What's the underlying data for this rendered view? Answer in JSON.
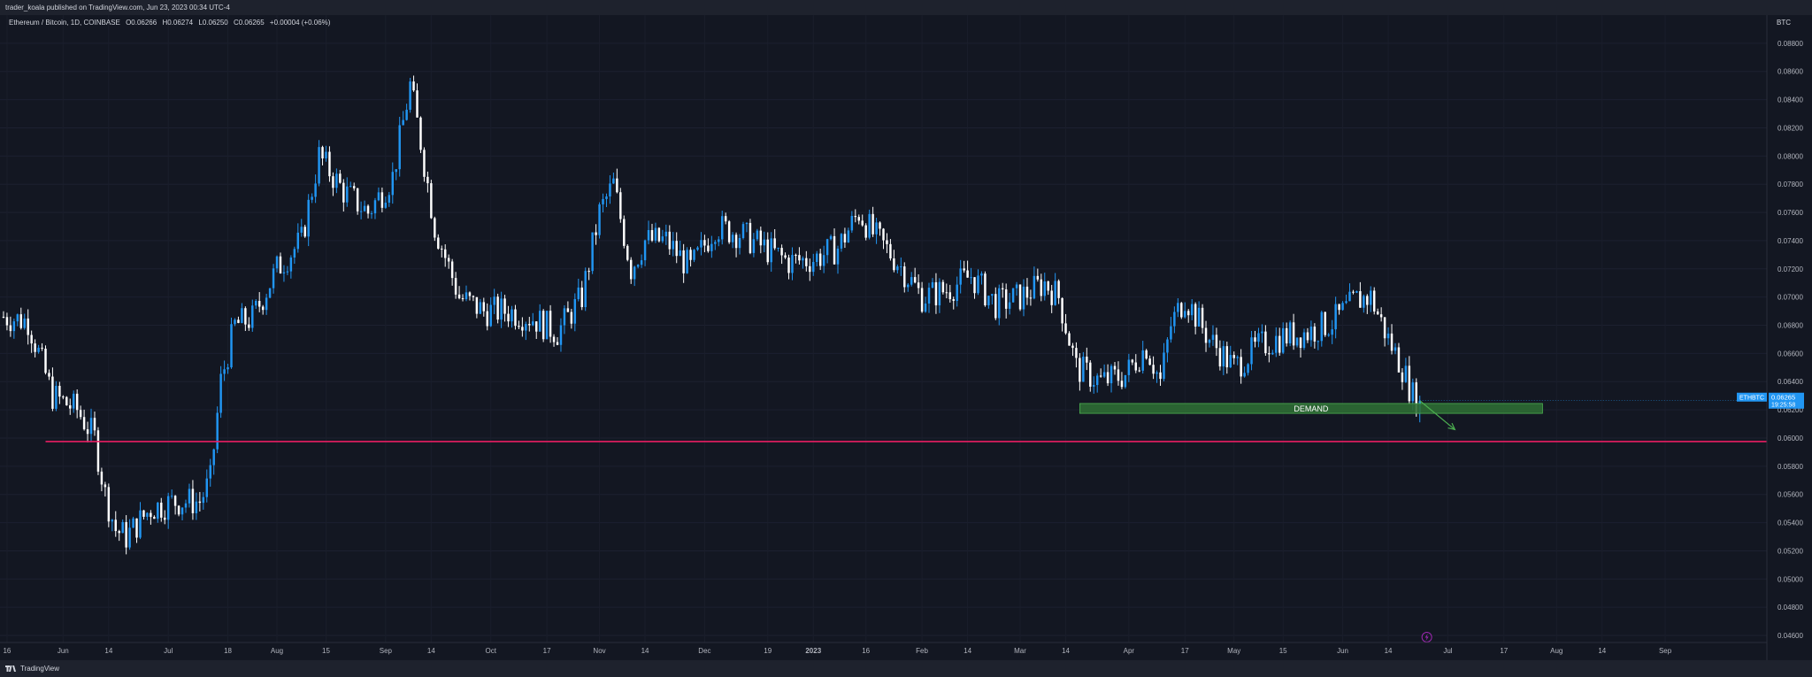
{
  "header": {
    "published": "trader_koala published on TradingView.com, Jun 23, 2023 00:34 UTC-4"
  },
  "legend": {
    "symbol": "Ethereum / Bitcoin, 1D, COINBASE",
    "open": "O0.06266",
    "high": "H0.06274",
    "low": "L0.06250",
    "close": "C0.06265",
    "change": "+0.00004 (+0.06%)"
  },
  "price_axis": {
    "unit": "BTC"
  },
  "price_tag": {
    "ticker": "ETHBTC",
    "price": "0.06265",
    "countdown": "19:25:58"
  },
  "footer": {
    "brand": "TradingView"
  },
  "colors": {
    "background": "#131722",
    "up_candle": "#2196f3",
    "down_candle": "#ffffff",
    "support_line": "#e91e63",
    "demand_zone": "#2e6b34",
    "arrow": "#4caf50",
    "price_tag": "#2196f3",
    "event_icon": "#9c27b0"
  },
  "chart_data": {
    "type": "candlestick",
    "title": "Ethereum / Bitcoin, 1D, COINBASE",
    "ylabel": "BTC",
    "ylim": [
      0.0455,
      0.09
    ],
    "y_ticks": [
      "0.08800",
      "0.08600",
      "0.08400",
      "0.08200",
      "0.08000",
      "0.07800",
      "0.07600",
      "0.07400",
      "0.07200",
      "0.07000",
      "0.06800",
      "0.06600",
      "0.06400",
      "0.06200",
      "0.06000",
      "0.05800",
      "0.05600",
      "0.05400",
      "0.05200",
      "0.05000",
      "0.04800",
      "0.04600"
    ],
    "x_ticks": [
      "16",
      "Jun",
      "14",
      "Jul",
      "18",
      "Aug",
      "15",
      "Sep",
      "14",
      "Oct",
      "17",
      "Nov",
      "14",
      "Dec",
      "19",
      "2023",
      "16",
      "Feb",
      "14",
      "Mar",
      "14",
      "Apr",
      "17",
      "May",
      "15",
      "Jun",
      "14",
      "Jul",
      "17",
      "Aug",
      "14",
      "Sep"
    ],
    "x_range": [
      "2022-05-14",
      "2023-09-30"
    ],
    "price_path": [
      [
        "2022-05-15",
        0.0686
      ],
      [
        "2022-05-22",
        0.0683
      ],
      [
        "2022-05-29",
        0.063
      ],
      [
        "2022-06-05",
        0.062
      ],
      [
        "2022-06-10",
        0.06
      ],
      [
        "2022-06-13",
        0.056
      ],
      [
        "2022-06-16",
        0.0535
      ],
      [
        "2022-06-19",
        0.053
      ],
      [
        "2022-06-26",
        0.055
      ],
      [
        "2022-07-03",
        0.0555
      ],
      [
        "2022-07-10",
        0.0555
      ],
      [
        "2022-07-13",
        0.057
      ],
      [
        "2022-07-16",
        0.064
      ],
      [
        "2022-07-20",
        0.068
      ],
      [
        "2022-07-25",
        0.0685
      ],
      [
        "2022-08-01",
        0.072
      ],
      [
        "2022-08-08",
        0.074
      ],
      [
        "2022-08-13",
        0.08
      ],
      [
        "2022-08-20",
        0.0775
      ],
      [
        "2022-08-27",
        0.076
      ],
      [
        "2022-09-03",
        0.0785
      ],
      [
        "2022-09-08",
        0.085
      ],
      [
        "2022-09-11",
        0.081
      ],
      [
        "2022-09-15",
        0.075
      ],
      [
        "2022-09-22",
        0.07
      ],
      [
        "2022-09-29",
        0.069
      ],
      [
        "2022-10-06",
        0.069
      ],
      [
        "2022-10-13",
        0.0685
      ],
      [
        "2022-10-20",
        0.0675
      ],
      [
        "2022-10-27",
        0.07
      ],
      [
        "2022-11-01",
        0.076
      ],
      [
        "2022-11-05",
        0.078
      ],
      [
        "2022-11-10",
        0.072
      ],
      [
        "2022-11-14",
        0.074
      ],
      [
        "2022-11-20",
        0.074
      ],
      [
        "2022-11-27",
        0.072
      ],
      [
        "2022-12-04",
        0.075
      ],
      [
        "2022-12-11",
        0.0745
      ],
      [
        "2022-12-18",
        0.0735
      ],
      [
        "2022-12-25",
        0.0725
      ],
      [
        "2023-01-01",
        0.0727
      ],
      [
        "2023-01-08",
        0.0735
      ],
      [
        "2023-01-14",
        0.076
      ],
      [
        "2023-01-18",
        0.0745
      ],
      [
        "2023-01-25",
        0.0725
      ],
      [
        "2023-02-01",
        0.07
      ],
      [
        "2023-02-08",
        0.0705
      ],
      [
        "2023-02-15",
        0.0715
      ],
      [
        "2023-02-22",
        0.0695
      ],
      [
        "2023-03-01",
        0.07
      ],
      [
        "2023-03-08",
        0.071
      ],
      [
        "2023-03-12",
        0.07
      ],
      [
        "2023-03-17",
        0.065
      ],
      [
        "2023-03-24",
        0.064
      ],
      [
        "2023-03-31",
        0.0645
      ],
      [
        "2023-04-06",
        0.0665
      ],
      [
        "2023-04-10",
        0.064
      ],
      [
        "2023-04-13",
        0.068
      ],
      [
        "2023-04-17",
        0.07
      ],
      [
        "2023-04-24",
        0.067
      ],
      [
        "2023-05-01",
        0.065
      ],
      [
        "2023-05-08",
        0.0665
      ],
      [
        "2023-05-15",
        0.0672
      ],
      [
        "2023-05-22",
        0.0675
      ],
      [
        "2023-05-29",
        0.0682
      ],
      [
        "2023-06-05",
        0.0698
      ],
      [
        "2023-06-09",
        0.07
      ],
      [
        "2023-06-14",
        0.067
      ],
      [
        "2023-06-18",
        0.065
      ],
      [
        "2023-06-21",
        0.063
      ],
      [
        "2023-06-23",
        0.06265
      ]
    ],
    "horizontal_line": {
      "price": 0.05975,
      "from": "2022-05-27"
    },
    "zone": {
      "label": "DEMAND",
      "from": "2023-03-18",
      "to": "2023-07-28",
      "low": 0.06175,
      "high": 0.06245
    },
    "arrow": {
      "from_date": "2023-06-23",
      "from_price": 0.06265,
      "to_date": "2023-07-03",
      "to_price": 0.0606
    },
    "last_price": 0.06265,
    "event_marker": {
      "date": "2023-06-25"
    }
  }
}
